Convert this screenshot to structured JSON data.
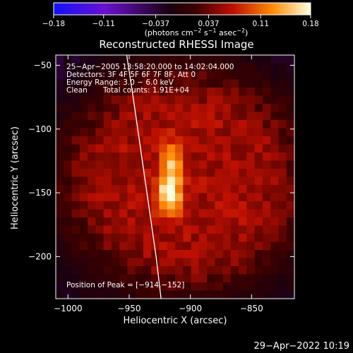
{
  "chart_data": {
    "type": "heatmap",
    "title": "Reconstructed RHESSI Image",
    "xlabel": "Heliocentric X (arcsec)",
    "ylabel": "Heliocentric Y (arcsec)",
    "xlim": [
      -1010,
      -815
    ],
    "ylim": [
      -233,
      -42
    ],
    "x_ticks": [
      -1000,
      -950,
      -900,
      -850
    ],
    "x_tick_labels": [
      "−1000",
      "−950",
      "−900",
      "−850"
    ],
    "y_ticks": [
      -50,
      -100,
      -150,
      -200
    ],
    "y_tick_labels": [
      "−50",
      "−100",
      "−150",
      "−200"
    ],
    "colorbar": {
      "range": [
        -0.18,
        0.18
      ],
      "ticks": [
        -0.18,
        -0.11,
        -0.037,
        0.037,
        0.11,
        0.18
      ],
      "tick_labels": [
        "−0.18",
        "−0.11",
        "−0.037",
        "0.037",
        "0.11",
        "0.18"
      ],
      "unit_prefix": "(photons cm",
      "unit_sup1": "−2",
      "unit_mid": " s",
      "unit_sup2": "−1",
      "unit_mid2": " asec",
      "unit_sup3": "−2",
      "unit_suffix": ")",
      "colormap": "blue-purple-black-red-yellow-white"
    },
    "annotations": {
      "time_range": "25−Apr−2005 13:58:20.000 to 14:02:04.000",
      "detectors": "Detectors: 3F 4F 5F 6F 7F 8F, Att 0",
      "energy": "Energy Range: 3.0 − 6.0 keV",
      "clean": "Clean",
      "counts": "Total counts: 1.91E+04",
      "peak": "Position of Peak = [−914,−152]"
    },
    "peak": {
      "x": -914,
      "y": -152,
      "value": 0.18
    },
    "limb_curve": [
      [
        -952,
        -42
      ],
      [
        -946,
        -80
      ],
      [
        -940,
        -120
      ],
      [
        -934,
        -160
      ],
      [
        -928,
        -200
      ],
      [
        -924,
        -233
      ]
    ],
    "sources": [
      {
        "x": -917,
        "y": -150,
        "sx": 7,
        "sy": 12,
        "amp": 0.12
      },
      {
        "x": -916,
        "y": -125,
        "sx": 6,
        "sy": 10,
        "amp": 0.08
      }
    ],
    "background_disk": {
      "x": -905,
      "y": -140,
      "rx": 92,
      "ry": 80,
      "level": 0.06
    }
  },
  "footer": {
    "timestamp": "29−Apr−2022 10:19"
  }
}
